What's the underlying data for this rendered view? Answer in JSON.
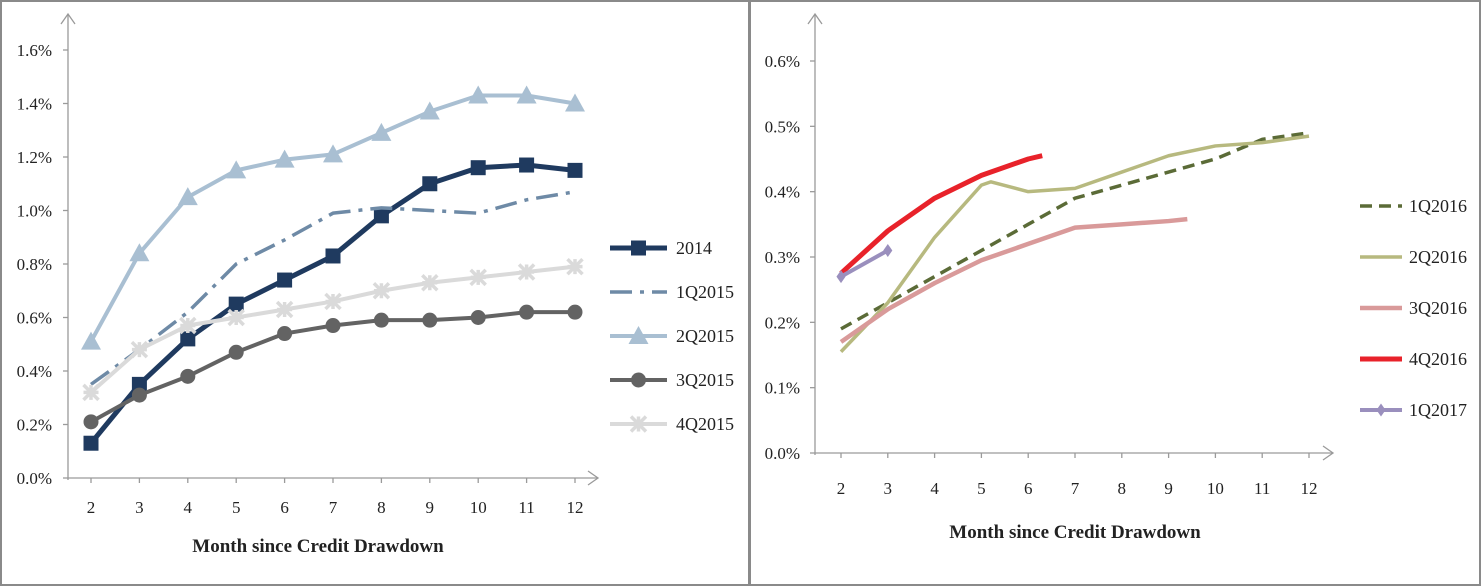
{
  "colors": {
    "background": "#ffffff",
    "axis": "#9a9a9a",
    "s2014": "#1f3a5f",
    "s1Q2015": "#6e8aa6",
    "s2Q2015": "#a9bfd2",
    "s3Q2015": "#636363",
    "s4Q2015": "#dadada",
    "s1Q2016": "#5b6b37",
    "s2Q2016": "#b7b97f",
    "s3Q2016": "#d99a9a",
    "s4Q2016": "#e8222a",
    "s1Q2017": "#9a8fbd"
  },
  "chart_data": [
    {
      "type": "line",
      "title": "",
      "xlabel": "Month since Credit Drawdown",
      "ylabel": "",
      "categories": [
        "2",
        "3",
        "4",
        "5",
        "6",
        "7",
        "8",
        "9",
        "10",
        "11",
        "12"
      ],
      "ylim": [
        0,
        1.6
      ],
      "yticks": [
        "0.0%",
        "0.2%",
        "0.4%",
        "0.6%",
        "0.8%",
        "1.0%",
        "1.2%",
        "1.4%",
        "1.6%"
      ],
      "legend_position": "right",
      "series": [
        {
          "name": "2014",
          "x": [
            2,
            3,
            4,
            5,
            6,
            7,
            8,
            9,
            10,
            11,
            12
          ],
          "values": [
            0.13,
            0.35,
            0.52,
            0.65,
            0.74,
            0.83,
            0.98,
            1.1,
            1.16,
            1.17,
            1.15
          ]
        },
        {
          "name": "1Q2015",
          "x": [
            2,
            3,
            4,
            5,
            6,
            7,
            8,
            9,
            10,
            11,
            12
          ],
          "values": [
            0.35,
            0.48,
            0.62,
            0.8,
            0.89,
            0.99,
            1.01,
            1.0,
            0.99,
            1.04,
            1.07
          ]
        },
        {
          "name": "2Q2015",
          "x": [
            2,
            3,
            4,
            5,
            6,
            7,
            8,
            9,
            10,
            11,
            12
          ],
          "values": [
            0.51,
            0.84,
            1.05,
            1.15,
            1.19,
            1.21,
            1.29,
            1.37,
            1.43,
            1.43,
            1.4
          ]
        },
        {
          "name": "3Q2015",
          "x": [
            2,
            3,
            4,
            5,
            6,
            7,
            8,
            9,
            10,
            11,
            12
          ],
          "values": [
            0.21,
            0.31,
            0.38,
            0.47,
            0.54,
            0.57,
            0.59,
            0.59,
            0.6,
            0.62,
            0.62
          ]
        },
        {
          "name": "4Q2015",
          "x": [
            2,
            3,
            4,
            5,
            6,
            7,
            8,
            9,
            10,
            11,
            12
          ],
          "values": [
            0.32,
            0.48,
            0.57,
            0.6,
            0.63,
            0.66,
            0.7,
            0.73,
            0.75,
            0.77,
            0.79
          ]
        }
      ]
    },
    {
      "type": "line",
      "title": "",
      "xlabel": "Month since Credit Drawdown",
      "ylabel": "",
      "categories": [
        "2",
        "3",
        "4",
        "5",
        "6",
        "7",
        "8",
        "9",
        "10",
        "11",
        "12"
      ],
      "ylim": [
        0,
        0.6
      ],
      "yticks": [
        "0.0%",
        "0.1%",
        "0.2%",
        "0.3%",
        "0.4%",
        "0.5%",
        "0.6%"
      ],
      "legend_position": "right",
      "series": [
        {
          "name": "1Q2016",
          "x": [
            2,
            3,
            4,
            5,
            6,
            7,
            8,
            9,
            10,
            11,
            12
          ],
          "values": [
            0.19,
            0.23,
            0.27,
            0.31,
            0.35,
            0.39,
            0.41,
            0.43,
            0.45,
            0.48,
            0.49
          ]
        },
        {
          "name": "2Q2016",
          "x": [
            2,
            3,
            4,
            5,
            5.2,
            6,
            7,
            8,
            9,
            10,
            11,
            12
          ],
          "values": [
            0.155,
            0.23,
            0.33,
            0.41,
            0.415,
            0.4,
            0.405,
            0.43,
            0.455,
            0.47,
            0.475,
            0.485
          ]
        },
        {
          "name": "3Q2016",
          "x": [
            2,
            3,
            4,
            5,
            6,
            7,
            8,
            9,
            9.4
          ],
          "values": [
            0.17,
            0.22,
            0.26,
            0.295,
            0.32,
            0.345,
            0.35,
            0.355,
            0.358
          ]
        },
        {
          "name": "4Q2016",
          "x": [
            2,
            3,
            4,
            5,
            6,
            6.3
          ],
          "values": [
            0.275,
            0.34,
            0.39,
            0.425,
            0.45,
            0.455
          ]
        },
        {
          "name": "1Q2017",
          "x": [
            2,
            3
          ],
          "values": [
            0.27,
            0.31
          ]
        }
      ]
    }
  ]
}
